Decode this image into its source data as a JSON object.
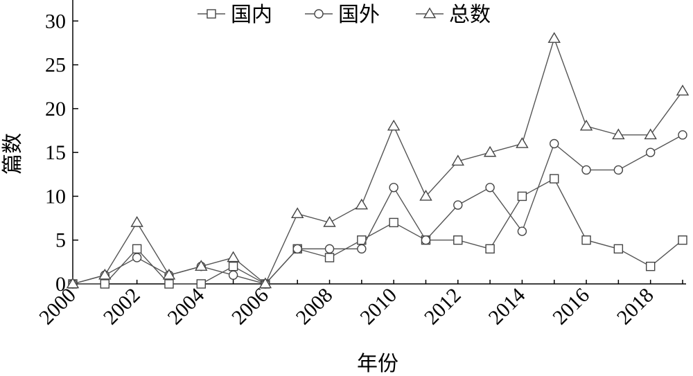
{
  "chart_data": {
    "type": "line",
    "xlabel": "年份",
    "ylabel": "篇数",
    "x": [
      2000,
      2001,
      2002,
      2003,
      2004,
      2005,
      2006,
      2007,
      2008,
      2009,
      2010,
      2011,
      2012,
      2013,
      2014,
      2015,
      2016,
      2017,
      2018,
      2019
    ],
    "xticks": [
      "2000",
      "2002",
      "2004",
      "2006",
      "2008",
      "2010",
      "2012",
      "2014",
      "2016",
      "2018"
    ],
    "yticks": [
      "0",
      "5",
      "10",
      "15",
      "20",
      "25",
      "30"
    ],
    "xlim": [
      2000,
      2019
    ],
    "ylim": [
      0,
      32
    ],
    "grid": false,
    "legend_position": "top",
    "series": [
      {
        "name": "国内",
        "marker": "square",
        "values": [
          0,
          0,
          4,
          0,
          0,
          2,
          0,
          4,
          3,
          5,
          7,
          5,
          5,
          4,
          10,
          12,
          5,
          4,
          2,
          5
        ]
      },
      {
        "name": "国外",
        "marker": "circle",
        "values": [
          0,
          1,
          3,
          1,
          2,
          1,
          0,
          4,
          4,
          4,
          11,
          5,
          9,
          11,
          6,
          16,
          13,
          13,
          15,
          17
        ]
      },
      {
        "name": "总数",
        "marker": "triangle",
        "values": [
          0,
          1,
          7,
          1,
          2,
          3,
          0,
          8,
          7,
          9,
          18,
          10,
          14,
          15,
          16,
          28,
          18,
          17,
          17,
          22
        ]
      }
    ]
  }
}
